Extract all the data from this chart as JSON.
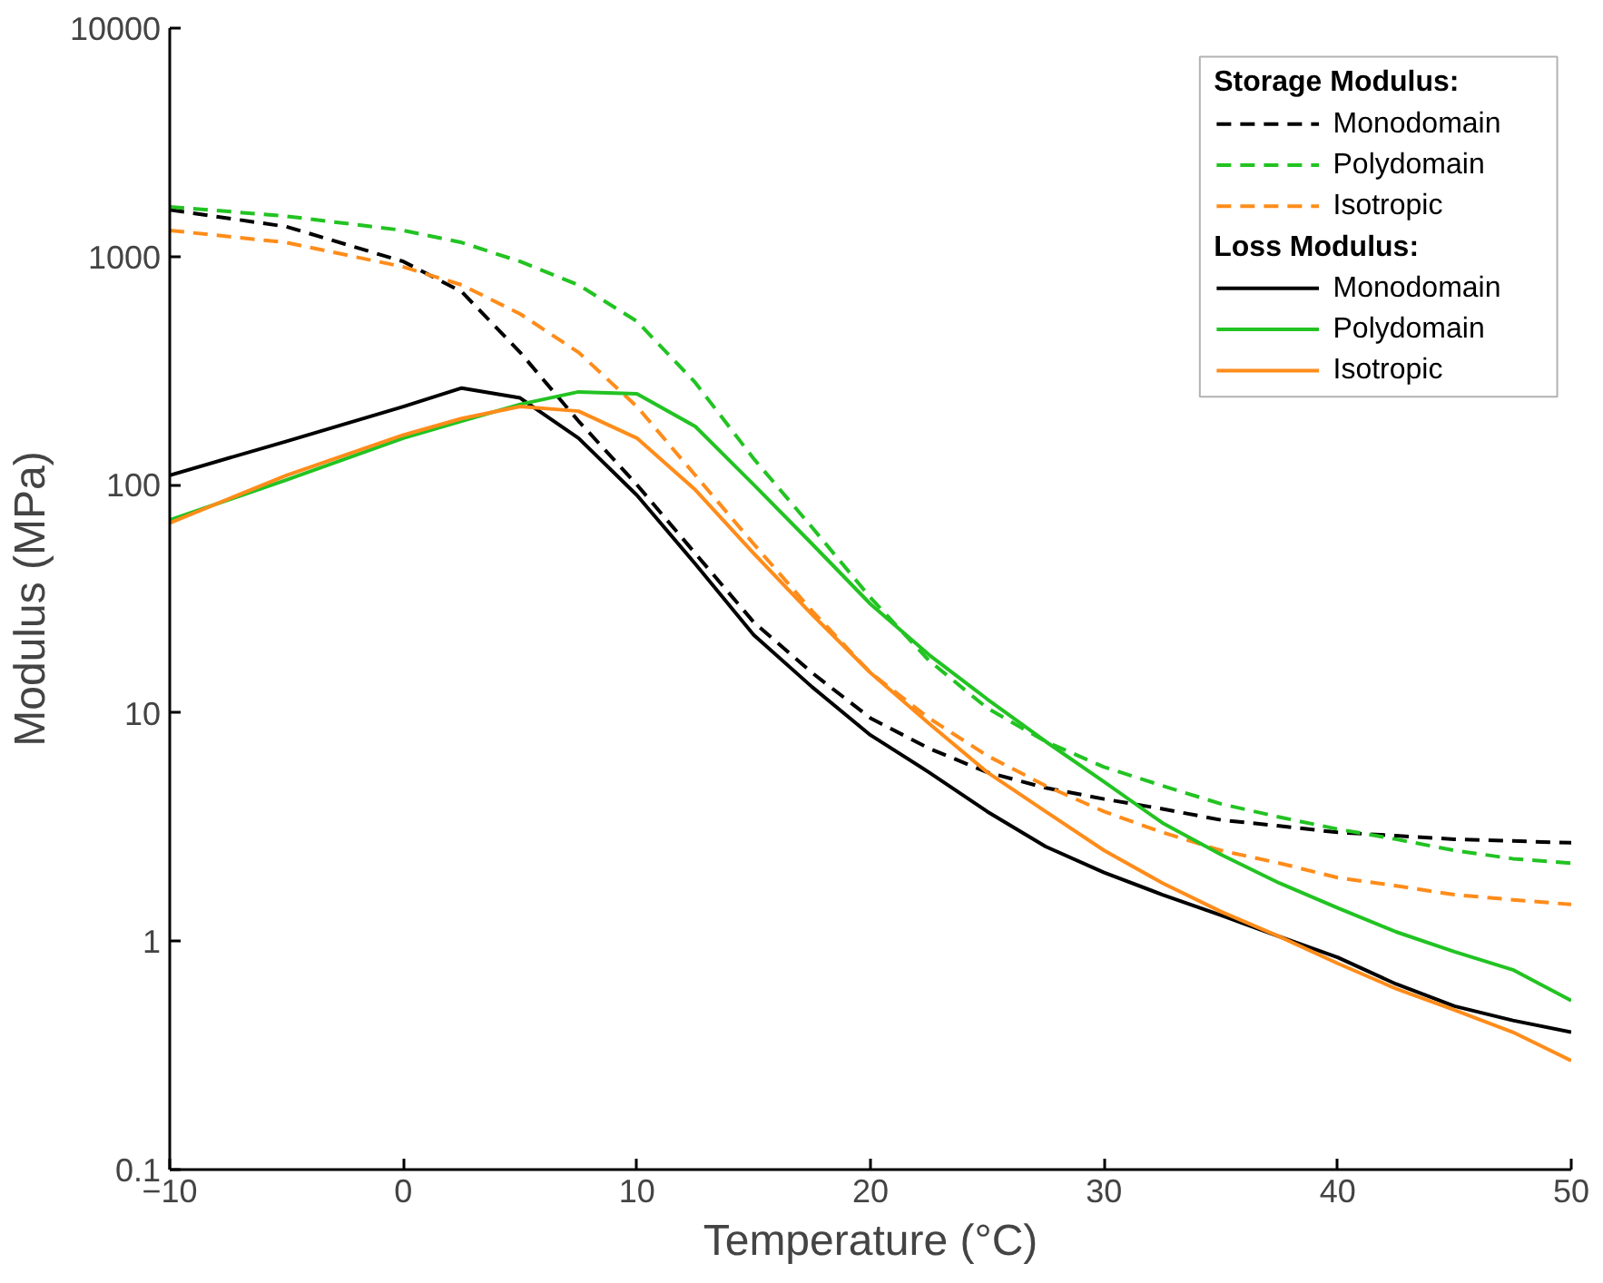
{
  "chart_data": {
    "type": "line",
    "xlabel": "Temperature (°C)",
    "ylabel": "Modulus (MPa)",
    "log": "y",
    "xlim": [
      -10,
      50
    ],
    "ylim": [
      0.1,
      10000
    ],
    "xticks": [
      {
        "value": -10,
        "label": "−10"
      },
      0,
      10,
      20,
      30,
      40,
      50
    ],
    "yticks": [
      0.1,
      1,
      10,
      100,
      1000,
      10000
    ],
    "grid": false,
    "legend": "top right",
    "annotations": [
      "Storage Modulus:",
      "Loss Modulus:"
    ],
    "x": [
      -10,
      -5,
      0,
      2.5,
      5,
      7.5,
      10,
      12.5,
      15,
      17.5,
      20,
      22.5,
      25,
      27.5,
      30,
      32.5,
      35,
      37.5,
      40,
      42.5,
      45,
      47.5,
      50
    ],
    "series": [
      {
        "name": "Monodomain",
        "color": "#000000",
        "line_style": "dashed",
        "values": [
          1600,
          1350,
          950,
          700,
          380,
          190,
          100,
          50,
          25,
          15,
          9.5,
          7,
          5.5,
          4.7,
          4.2,
          3.8,
          3.4,
          3.2,
          3.0,
          2.9,
          2.8,
          2.75,
          2.7
        ]
      },
      {
        "name": "Polydomain",
        "color": "#22c322",
        "line_style": "dashed",
        "values": [
          1650,
          1500,
          1300,
          1150,
          950,
          750,
          520,
          280,
          130,
          65,
          32,
          17,
          10.5,
          7.5,
          5.8,
          4.8,
          4.0,
          3.5,
          3.1,
          2.8,
          2.5,
          2.3,
          2.2
        ]
      },
      {
        "name": "Isotropic",
        "color": "#ff8c1a",
        "line_style": "dashed",
        "values": [
          1300,
          1150,
          900,
          750,
          560,
          380,
          220,
          110,
          55,
          28,
          15,
          9.5,
          6.5,
          4.8,
          3.7,
          3.0,
          2.5,
          2.2,
          1.9,
          1.75,
          1.6,
          1.52,
          1.45
        ]
      },
      {
        "name": "Monodomain",
        "color": "#000000",
        "line_style": "solid",
        "values": [
          110,
          155,
          220,
          265,
          240,
          160,
          90,
          45,
          22,
          13,
          8,
          5.5,
          3.7,
          2.6,
          2.0,
          1.6,
          1.3,
          1.05,
          0.85,
          0.65,
          0.52,
          0.45,
          0.4
        ]
      },
      {
        "name": "Polydomain",
        "color": "#22c322",
        "line_style": "solid",
        "values": [
          70,
          105,
          160,
          190,
          225,
          255,
          250,
          180,
          100,
          55,
          30,
          18,
          11.5,
          7.5,
          5.0,
          3.3,
          2.4,
          1.8,
          1.4,
          1.1,
          0.9,
          0.75,
          0.55
        ]
      },
      {
        "name": "Isotropic",
        "color": "#ff8c1a",
        "line_style": "solid",
        "values": [
          68,
          110,
          165,
          195,
          220,
          210,
          160,
          95,
          50,
          27,
          15,
          9,
          5.5,
          3.7,
          2.5,
          1.8,
          1.35,
          1.05,
          0.8,
          0.62,
          0.5,
          0.4,
          0.3
        ]
      }
    ]
  }
}
